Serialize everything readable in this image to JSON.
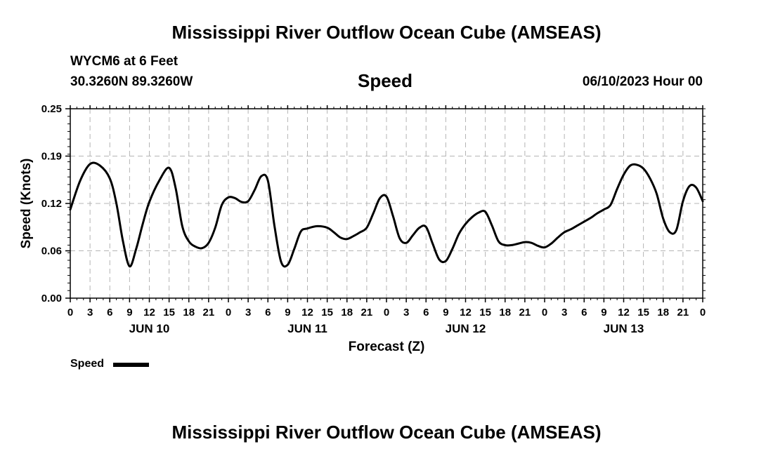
{
  "header": {
    "title": "Mississippi River Outflow Ocean Cube (AMSEAS)",
    "station": "WYCM6 at 6 Feet",
    "coords": "30.3260N  89.3260W",
    "variable": "Speed",
    "date": "06/10/2023 Hour 00"
  },
  "footer": {
    "title": "Mississippi River Outflow Ocean Cube (AMSEAS)"
  },
  "legend": {
    "label": "Speed",
    "color": "#000000"
  },
  "chart_data": {
    "type": "line",
    "title": "Speed",
    "xlabel": "Forecast (Z)",
    "ylabel": "Speed (Knots)",
    "ylim": [
      0,
      0.25
    ],
    "xlim": [
      0,
      96
    ],
    "yticks": [
      {
        "v": 0.0,
        "label": "0.00"
      },
      {
        "v": 0.0625,
        "label": "0.06"
      },
      {
        "v": 0.125,
        "label": "0.12"
      },
      {
        "v": 0.1875,
        "label": "0.19"
      },
      {
        "v": 0.25,
        "label": "0.25"
      }
    ],
    "xticks": [
      {
        "h": 0,
        "label": "0"
      },
      {
        "h": 3,
        "label": "3"
      },
      {
        "h": 6,
        "label": "6"
      },
      {
        "h": 9,
        "label": "9"
      },
      {
        "h": 12,
        "label": "12"
      },
      {
        "h": 15,
        "label": "15"
      },
      {
        "h": 18,
        "label": "18"
      },
      {
        "h": 21,
        "label": "21"
      },
      {
        "h": 24,
        "label": "0"
      },
      {
        "h": 27,
        "label": "3"
      },
      {
        "h": 30,
        "label": "6"
      },
      {
        "h": 33,
        "label": "9"
      },
      {
        "h": 36,
        "label": "12"
      },
      {
        "h": 39,
        "label": "15"
      },
      {
        "h": 42,
        "label": "18"
      },
      {
        "h": 45,
        "label": "21"
      },
      {
        "h": 48,
        "label": "0"
      },
      {
        "h": 51,
        "label": "3"
      },
      {
        "h": 54,
        "label": "6"
      },
      {
        "h": 57,
        "label": "9"
      },
      {
        "h": 60,
        "label": "12"
      },
      {
        "h": 63,
        "label": "15"
      },
      {
        "h": 66,
        "label": "18"
      },
      {
        "h": 69,
        "label": "21"
      },
      {
        "h": 72,
        "label": "0"
      },
      {
        "h": 75,
        "label": "3"
      },
      {
        "h": 78,
        "label": "6"
      },
      {
        "h": 81,
        "label": "9"
      },
      {
        "h": 84,
        "label": "12"
      },
      {
        "h": 87,
        "label": "15"
      },
      {
        "h": 90,
        "label": "18"
      },
      {
        "h": 93,
        "label": "21"
      },
      {
        "h": 96,
        "label": "0"
      }
    ],
    "day_labels": [
      {
        "h": 12,
        "label": "JUN 10"
      },
      {
        "h": 36,
        "label": "JUN 11"
      },
      {
        "h": 60,
        "label": "JUN 12"
      },
      {
        "h": 84,
        "label": "JUN 13"
      }
    ],
    "series": [
      {
        "name": "Speed",
        "hours": [
          0,
          1.5,
          3,
          4.5,
          6,
          7,
          8,
          9,
          10,
          11,
          12,
          13.5,
          15,
          16,
          17,
          18,
          19,
          20,
          21,
          22,
          23,
          24,
          25,
          26,
          27,
          28,
          29,
          30,
          31,
          32,
          33,
          34,
          35,
          36,
          37.5,
          39,
          40,
          41,
          42,
          43,
          44,
          45,
          46,
          47,
          48,
          49,
          50,
          51,
          52,
          53,
          54,
          55,
          56,
          57,
          58,
          59,
          60,
          61,
          62,
          63,
          64,
          65,
          66,
          67,
          68,
          69,
          70,
          71,
          72,
          73,
          74,
          75,
          76,
          77,
          78,
          79,
          80,
          81,
          82,
          83,
          84,
          85,
          86,
          87,
          88,
          89,
          90,
          91,
          92,
          93,
          94,
          95,
          96
        ],
        "values": [
          0.117,
          0.155,
          0.177,
          0.175,
          0.158,
          0.125,
          0.075,
          0.042,
          0.065,
          0.098,
          0.127,
          0.155,
          0.172,
          0.145,
          0.095,
          0.075,
          0.068,
          0.066,
          0.073,
          0.093,
          0.123,
          0.133,
          0.132,
          0.127,
          0.128,
          0.143,
          0.161,
          0.155,
          0.095,
          0.048,
          0.044,
          0.065,
          0.088,
          0.092,
          0.095,
          0.093,
          0.087,
          0.08,
          0.078,
          0.082,
          0.087,
          0.093,
          0.112,
          0.132,
          0.134,
          0.108,
          0.079,
          0.073,
          0.083,
          0.093,
          0.094,
          0.072,
          0.051,
          0.049,
          0.065,
          0.085,
          0.098,
          0.107,
          0.113,
          0.114,
          0.096,
          0.075,
          0.07,
          0.07,
          0.072,
          0.074,
          0.073,
          0.069,
          0.067,
          0.072,
          0.08,
          0.087,
          0.091,
          0.096,
          0.101,
          0.106,
          0.112,
          0.117,
          0.123,
          0.144,
          0.163,
          0.175,
          0.176,
          0.171,
          0.158,
          0.138,
          0.105,
          0.087,
          0.09,
          0.128,
          0.148,
          0.146,
          0.128
        ]
      }
    ]
  }
}
